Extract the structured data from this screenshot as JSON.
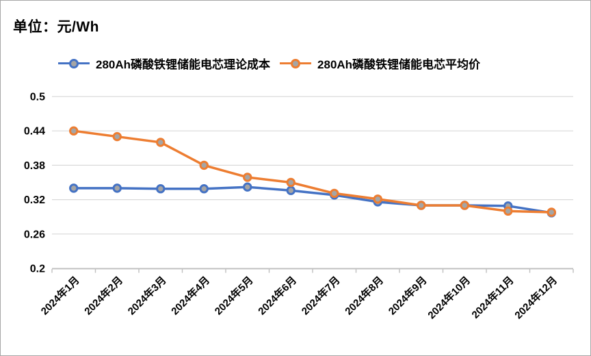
{
  "title": "单位：元/Wh",
  "colors": {
    "series_blue": "#4472C4",
    "series_orange": "#ED7D31",
    "marker_fill": "#A5A5A5",
    "gridline": "#D9D9D9",
    "axis_line": "#BFBFBF",
    "text": "#000000",
    "frame_border": "#A6A6A6",
    "background": "#FFFFFF"
  },
  "chart_data": {
    "type": "line",
    "title": "单位：元/Wh",
    "xlabel": "",
    "ylabel": "",
    "categories": [
      "2024年1月",
      "2024年2月",
      "2024年3月",
      "2024年4月",
      "2024年5月",
      "2024年6月",
      "2024年7月",
      "2024年8月",
      "2024年9月",
      "2024年10月",
      "2024年11月",
      "2024年12月"
    ],
    "series": [
      {
        "name": "280Ah磷酸铁锂储能电芯理论成本",
        "color": "#4472C4",
        "values": [
          0.34,
          0.34,
          0.339,
          0.339,
          0.342,
          0.336,
          0.328,
          0.316,
          0.31,
          0.31,
          0.309,
          0.297
        ]
      },
      {
        "name": "280Ah磷酸铁锂储能电芯平均价",
        "color": "#ED7D31",
        "values": [
          0.44,
          0.43,
          0.42,
          0.38,
          0.359,
          0.35,
          0.331,
          0.321,
          0.31,
          0.31,
          0.3,
          0.298
        ]
      }
    ],
    "ylim": [
      0.2,
      0.5
    ],
    "yticks": [
      0.2,
      0.26,
      0.32,
      0.38,
      0.44,
      0.5
    ],
    "ytick_labels": [
      "0.2",
      "0.26",
      "0.32",
      "0.38",
      "0.44",
      "0.5"
    ],
    "grid": true,
    "legend_position": "top",
    "marker": "circle-gray-fill"
  }
}
